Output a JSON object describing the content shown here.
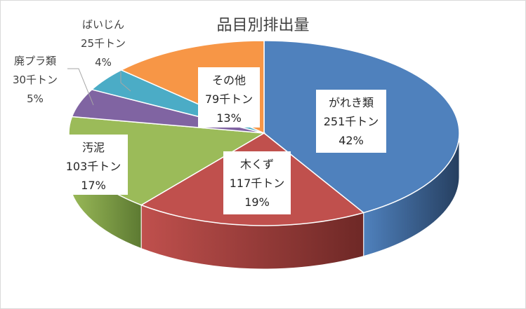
{
  "chart_data": {
    "type": "pie",
    "title": "品目別排出量",
    "slices": [
      {
        "name": "がれき類",
        "value": 251,
        "value_label": "251千トン",
        "percent_label": "42%",
        "color": "#4F81BD",
        "side_color": "#263F60"
      },
      {
        "name": "木くず",
        "value": 117,
        "value_label": "117千トン",
        "percent_label": "19%",
        "color": "#C0504D",
        "side_color": "#6E2826"
      },
      {
        "name": "汚泥",
        "value": 103,
        "value_label": "103千トン",
        "percent_label": "17%",
        "color": "#9BBB59",
        "side_color": "#5D7A32"
      },
      {
        "name": "廃プラ類",
        "value": 30,
        "value_label": "30千トン",
        "percent_label": "5%",
        "color": "#8064A2",
        "side_color": "#4A3860"
      },
      {
        "name": "ばいじん",
        "value": 25,
        "value_label": "25千トン",
        "percent_label": "4%",
        "color": "#4BACC6",
        "side_color": "#2A6A7B"
      },
      {
        "name": "その他",
        "value": 79,
        "value_label": "79千トン",
        "percent_label": "13%",
        "color": "#F79646",
        "side_color": "#9A5B24"
      }
    ]
  }
}
